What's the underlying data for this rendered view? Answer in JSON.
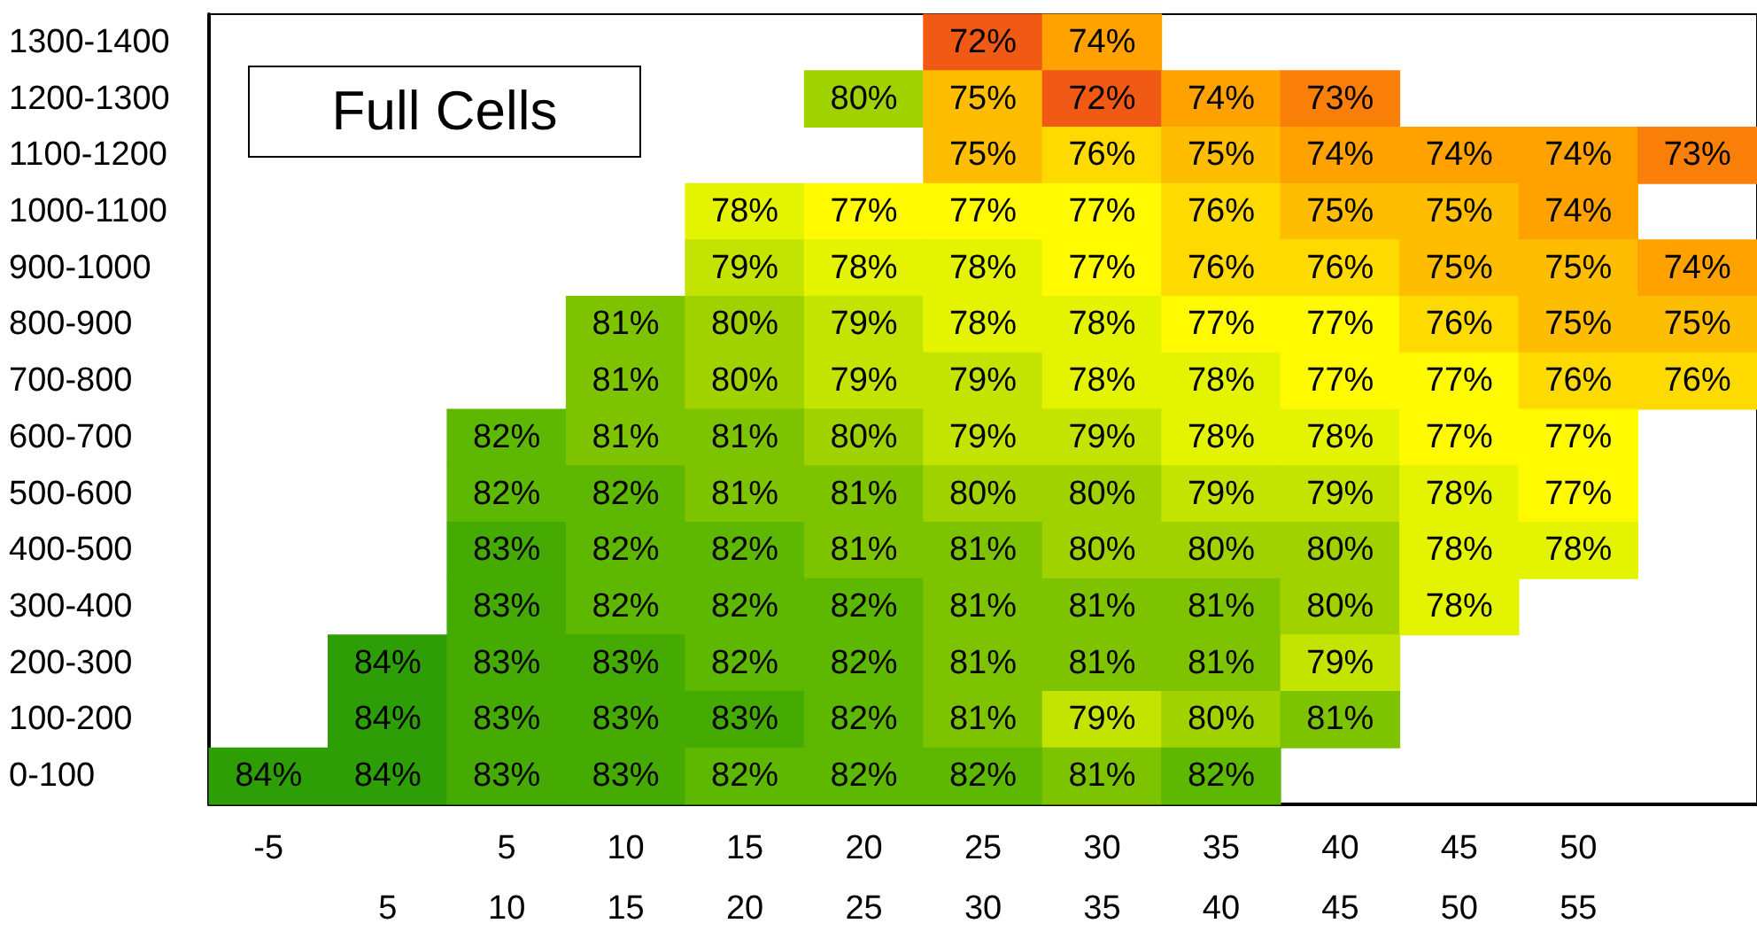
{
  "chart_data": {
    "type": "heatmap",
    "annotations": [
      "Full Cells"
    ],
    "categories": [
      "-5\n",
      "\n5",
      "5\n10",
      "10\n15",
      "15\n20",
      "20\n25",
      "25\n30",
      "30\n35",
      "35\n40",
      "40\n45",
      "45\n50",
      "50\n55",
      null
    ],
    "y_categories": [
      "1300-1400",
      "1200-1300",
      "1100-1200",
      "1000-1100",
      "900-1000",
      "800-900",
      "700-800",
      "600-700",
      "500-600",
      "400-500",
      "300-400",
      "200-300",
      "100-200",
      "0-100"
    ],
    "cells": [
      [
        null,
        null,
        null,
        null,
        null,
        null,
        72,
        74,
        null,
        null,
        null,
        null,
        null
      ],
      [
        null,
        null,
        null,
        null,
        null,
        80,
        75,
        72,
        74,
        73,
        null,
        null,
        null
      ],
      [
        null,
        null,
        null,
        null,
        null,
        null,
        75,
        76,
        75,
        74,
        74,
        74,
        73
      ],
      [
        null,
        null,
        null,
        null,
        78,
        77,
        77,
        77,
        76,
        75,
        75,
        74,
        null
      ],
      [
        null,
        null,
        null,
        null,
        79,
        78,
        78,
        77,
        76,
        76,
        75,
        75,
        74
      ],
      [
        null,
        null,
        null,
        81,
        80,
        79,
        78,
        78,
        77,
        77,
        76,
        75,
        75
      ],
      [
        null,
        null,
        null,
        81,
        80,
        79,
        79,
        78,
        78,
        77,
        77,
        76,
        76
      ],
      [
        null,
        null,
        82,
        81,
        81,
        80,
        79,
        79,
        78,
        78,
        77,
        77,
        null
      ],
      [
        null,
        null,
        82,
        82,
        81,
        81,
        80,
        80,
        79,
        79,
        78,
        77,
        null
      ],
      [
        null,
        null,
        83,
        82,
        82,
        81,
        81,
        80,
        80,
        80,
        78,
        78,
        null
      ],
      [
        null,
        null,
        83,
        82,
        82,
        82,
        81,
        81,
        81,
        80,
        78,
        null,
        null
      ],
      [
        null,
        84,
        83,
        83,
        82,
        82,
        81,
        81,
        81,
        79,
        null,
        null,
        null
      ],
      [
        null,
        84,
        83,
        83,
        83,
        82,
        81,
        79,
        80,
        81,
        null,
        null,
        null
      ],
      [
        84,
        84,
        83,
        83,
        82,
        82,
        82,
        81,
        82,
        null,
        null,
        null,
        null
      ]
    ],
    "cell_labels": [
      [
        null,
        null,
        null,
        null,
        null,
        null,
        "72%",
        "74%",
        null,
        null,
        null,
        null,
        null
      ],
      [
        null,
        null,
        null,
        null,
        null,
        "80%",
        "75%",
        "72%",
        "74%",
        "73%",
        null,
        null,
        null
      ],
      [
        null,
        null,
        null,
        null,
        null,
        null,
        "75%",
        "76%",
        "75%",
        "74%",
        "74%",
        "74%",
        "73%"
      ],
      [
        null,
        null,
        null,
        null,
        "78%",
        "77%",
        "77%",
        "77%",
        "76%",
        "75%",
        "75%",
        "74%",
        null
      ],
      [
        null,
        null,
        null,
        null,
        "79%",
        "78%",
        "78%",
        "77%",
        "76%",
        "76%",
        "75%",
        "75%",
        "74%"
      ],
      [
        null,
        null,
        null,
        "81%",
        "80%",
        "79%",
        "78%",
        "78%",
        "77%",
        "77%",
        "76%",
        "75%",
        "75%"
      ],
      [
        null,
        null,
        null,
        "81%",
        "80%",
        "79%",
        "79%",
        "78%",
        "78%",
        "77%",
        "77%",
        "76%",
        "76%"
      ],
      [
        null,
        null,
        "82%",
        "81%",
        "81%",
        "80%",
        "79%",
        "79%",
        "78%",
        "78%",
        "77%",
        "77%",
        null
      ],
      [
        null,
        null,
        "82%",
        "82%",
        "81%",
        "81%",
        "80%",
        "80%",
        "79%",
        "79%",
        "78%",
        "77%",
        null
      ],
      [
        null,
        null,
        "83%",
        "82%",
        "82%",
        "81%",
        "81%",
        "80%",
        "80%",
        "80%",
        "78%",
        "78%",
        null
      ],
      [
        null,
        null,
        "83%",
        "82%",
        "82%",
        "82%",
        "81%",
        "81%",
        "81%",
        "80%",
        "78%",
        null,
        null
      ],
      [
        null,
        "84%",
        "83%",
        "83%",
        "82%",
        "82%",
        "81%",
        "81%",
        "81%",
        "79%",
        null,
        null,
        null
      ],
      [
        null,
        "84%",
        "83%",
        "83%",
        "83%",
        "82%",
        "81%",
        "79%",
        "80%",
        "81%",
        null,
        null,
        null
      ],
      [
        "84%",
        "84%",
        "83%",
        "83%",
        "82%",
        "82%",
        "82%",
        "81%",
        "82%",
        null,
        null,
        null,
        null
      ]
    ]
  }
}
